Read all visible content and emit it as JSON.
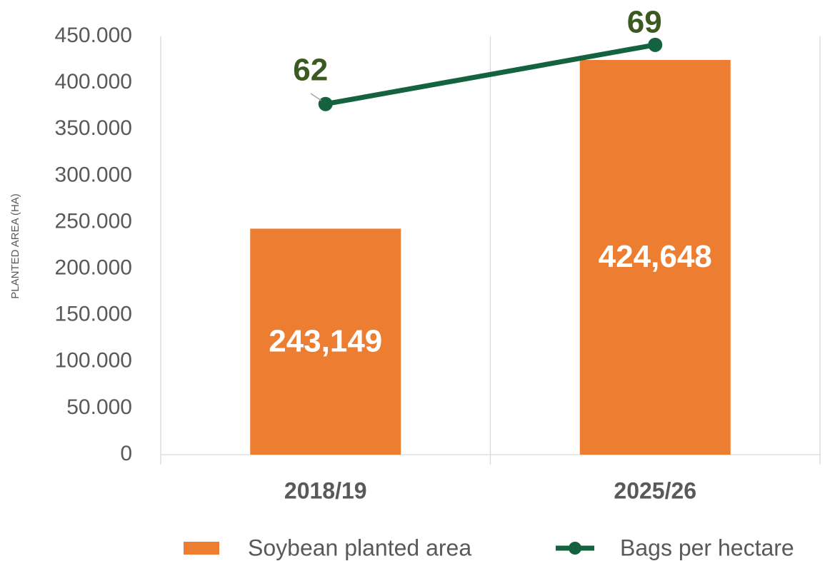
{
  "chart_data": {
    "type": "combo",
    "y_axis_label": "PLANTED AREA (HA)",
    "categories": [
      "2018/19",
      "2025/26"
    ],
    "series": [
      {
        "name": "Soybean planted area",
        "type": "bar",
        "axis": "y",
        "color": "#ed7d31",
        "values": [
          243149,
          424648
        ],
        "value_labels": [
          "243,149",
          "424,648"
        ]
      },
      {
        "name": "Bags per hectare",
        "type": "line",
        "axis": "y2",
        "color": "#156240",
        "values": [
          62,
          69
        ]
      }
    ],
    "ylim": [
      0,
      450000
    ],
    "yticks": [
      0,
      {
        "value": 50000,
        "label": "50.000"
      },
      {
        "value": 100000,
        "label": "100.000"
      },
      {
        "value": 150000,
        "label": "150.000"
      },
      {
        "value": 200000,
        "label": "200.000"
      },
      {
        "value": 250000,
        "label": "250.000"
      },
      {
        "value": 300000,
        "label": "300.000"
      },
      {
        "value": 350000,
        "label": "350.000"
      },
      {
        "value": 400000,
        "label": "400.000"
      },
      {
        "value": 450000,
        "label": "450.000"
      }
    ],
    "y2lim": [
      20.5,
      70
    ],
    "grid": true,
    "legend": "bottom"
  }
}
